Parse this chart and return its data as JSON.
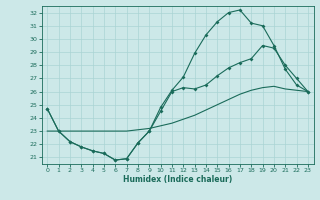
{
  "xlabel": "Humidex (Indice chaleur)",
  "bg_color": "#cce8e8",
  "grid_color": "#aad4d4",
  "line_color": "#1a6b5a",
  "xlim": [
    -0.5,
    23.5
  ],
  "ylim": [
    20.5,
    32.5
  ],
  "yticks": [
    21,
    22,
    23,
    24,
    25,
    26,
    27,
    28,
    29,
    30,
    31,
    32
  ],
  "xticks": [
    0,
    1,
    2,
    3,
    4,
    5,
    6,
    7,
    8,
    9,
    10,
    11,
    12,
    13,
    14,
    15,
    16,
    17,
    18,
    19,
    20,
    21,
    22,
    23
  ],
  "line1_x": [
    0,
    1,
    2,
    3,
    4,
    5,
    6,
    7,
    8,
    9,
    10,
    11,
    12,
    13,
    14,
    15,
    16,
    17,
    18,
    19,
    20,
    21,
    22,
    23
  ],
  "line1_y": [
    24.7,
    23.0,
    22.2,
    21.8,
    21.5,
    21.3,
    20.8,
    20.9,
    22.1,
    23.0,
    24.8,
    26.1,
    27.1,
    28.9,
    30.3,
    31.3,
    32.0,
    32.2,
    31.2,
    31.0,
    29.5,
    27.7,
    26.5,
    26.0
  ],
  "line2_x": [
    0,
    1,
    2,
    3,
    4,
    5,
    6,
    7,
    8,
    9,
    10,
    11,
    12,
    13,
    14,
    15,
    16,
    17,
    18,
    19,
    20,
    21,
    22,
    23
  ],
  "line2_y": [
    24.7,
    23.0,
    22.2,
    21.8,
    21.5,
    21.3,
    20.8,
    20.9,
    22.1,
    23.0,
    24.5,
    26.0,
    26.3,
    26.2,
    26.5,
    27.2,
    27.8,
    28.2,
    28.5,
    29.5,
    29.3,
    28.0,
    27.0,
    26.0
  ],
  "line3_x": [
    0,
    1,
    2,
    3,
    4,
    5,
    6,
    7,
    8,
    9,
    10,
    11,
    12,
    13,
    14,
    15,
    16,
    17,
    18,
    19,
    20,
    21,
    22,
    23
  ],
  "line3_y": [
    23.0,
    23.0,
    23.0,
    23.0,
    23.0,
    23.0,
    23.0,
    23.0,
    23.1,
    23.2,
    23.4,
    23.6,
    23.9,
    24.2,
    24.6,
    25.0,
    25.4,
    25.8,
    26.1,
    26.3,
    26.4,
    26.2,
    26.1,
    26.0
  ]
}
